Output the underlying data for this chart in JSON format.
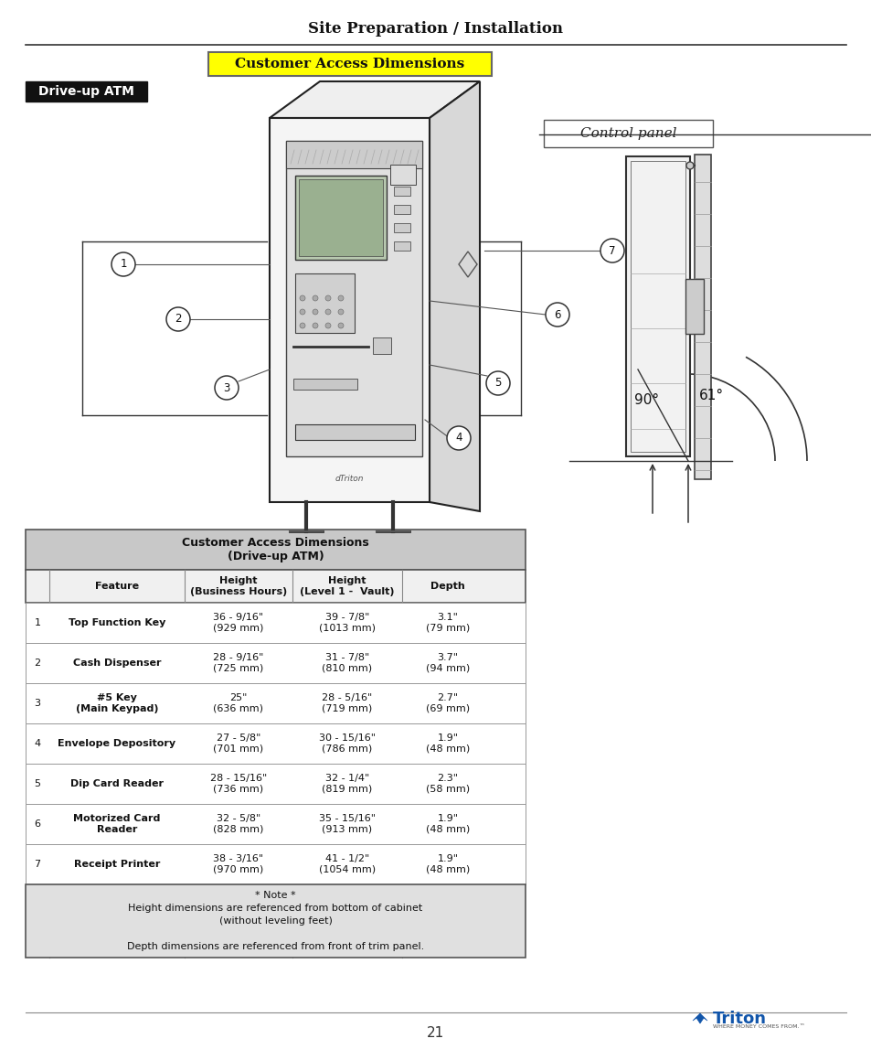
{
  "page_title": "Site Preparation / Installation",
  "section_title": "Customer Access Dimensions",
  "driveup_label": "Drive-up ATM",
  "table_title": "Customer Access Dimensions\n(Drive-up ATM)",
  "col_headers": [
    "",
    "Feature",
    "Height\n(Business Hours)",
    "Height\n(Level 1 -  Vault)",
    "Depth"
  ],
  "rows": [
    [
      "1",
      "Top Function Key",
      "36 - 9/16\"\n(929 mm)",
      "39 - 7/8\"\n(1013 mm)",
      "3.1\"\n(79 mm)"
    ],
    [
      "2",
      "Cash Dispenser",
      "28 - 9/16\"\n(725 mm)",
      "31 - 7/8\"\n(810 mm)",
      "3.7\"\n(94 mm)"
    ],
    [
      "3",
      "#5 Key\n(Main Keypad)",
      "25\"\n(636 mm)",
      "28 - 5/16\"\n(719 mm)",
      "2.7\"\n(69 mm)"
    ],
    [
      "4",
      "Envelope Depository",
      "27 - 5/8\"\n(701 mm)",
      "30 - 15/16\"\n(786 mm)",
      "1.9\"\n(48 mm)"
    ],
    [
      "5",
      "Dip Card Reader",
      "28 - 15/16\"\n(736 mm)",
      "32 - 1/4\"\n(819 mm)",
      "2.3\"\n(58 mm)"
    ],
    [
      "6",
      "Motorized Card\nReader",
      "32 - 5/8\"\n(828 mm)",
      "35 - 15/16\"\n(913 mm)",
      "1.9\"\n(48 mm)"
    ],
    [
      "7",
      "Receipt Printer",
      "38 - 3/16\"\n(970 mm)",
      "41 - 1/2\"\n(1054 mm)",
      "1.9\"\n(48 mm)"
    ]
  ],
  "note_text": "* Note *\nHeight dimensions are referenced from bottom of cabinet\n(without leveling feet)\n\nDepth dimensions are referenced from front of trim panel.",
  "control_panel_label": "Control panel",
  "angle1": "90°",
  "angle2": "61°",
  "page_number": "21",
  "bg_color": "#ffffff",
  "table_header_bg": "#c8c8c8",
  "table_subheader_bg": "#e8e8e8",
  "table_note_bg": "#e0e0e0",
  "yellow_bg": "#ffff00",
  "driveup_label_bg": "#111111",
  "driveup_label_color": "#ffffff",
  "border_color": "#555555",
  "line_color": "#333333"
}
